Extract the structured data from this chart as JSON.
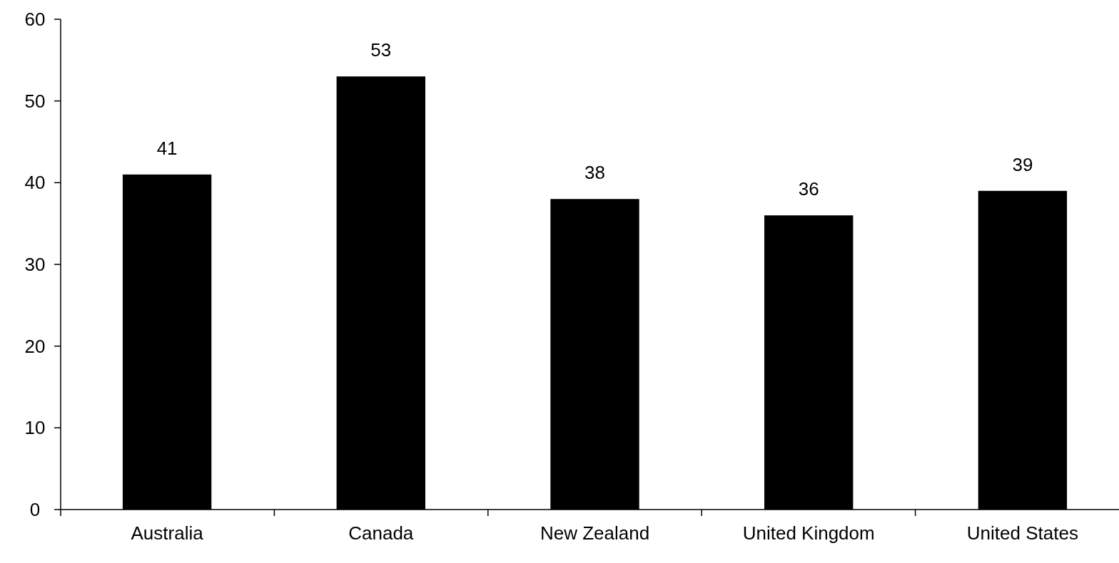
{
  "chart_data": {
    "type": "bar",
    "categories": [
      "Australia",
      "Canada",
      "New Zealand",
      "United Kingdom",
      "United States"
    ],
    "values": [
      41,
      53,
      38,
      36,
      39
    ],
    "color": "#000000",
    "ylim": [
      0,
      60
    ],
    "yticks": [
      0,
      10,
      20,
      30,
      40,
      50,
      60
    ],
    "data_labels": true
  }
}
